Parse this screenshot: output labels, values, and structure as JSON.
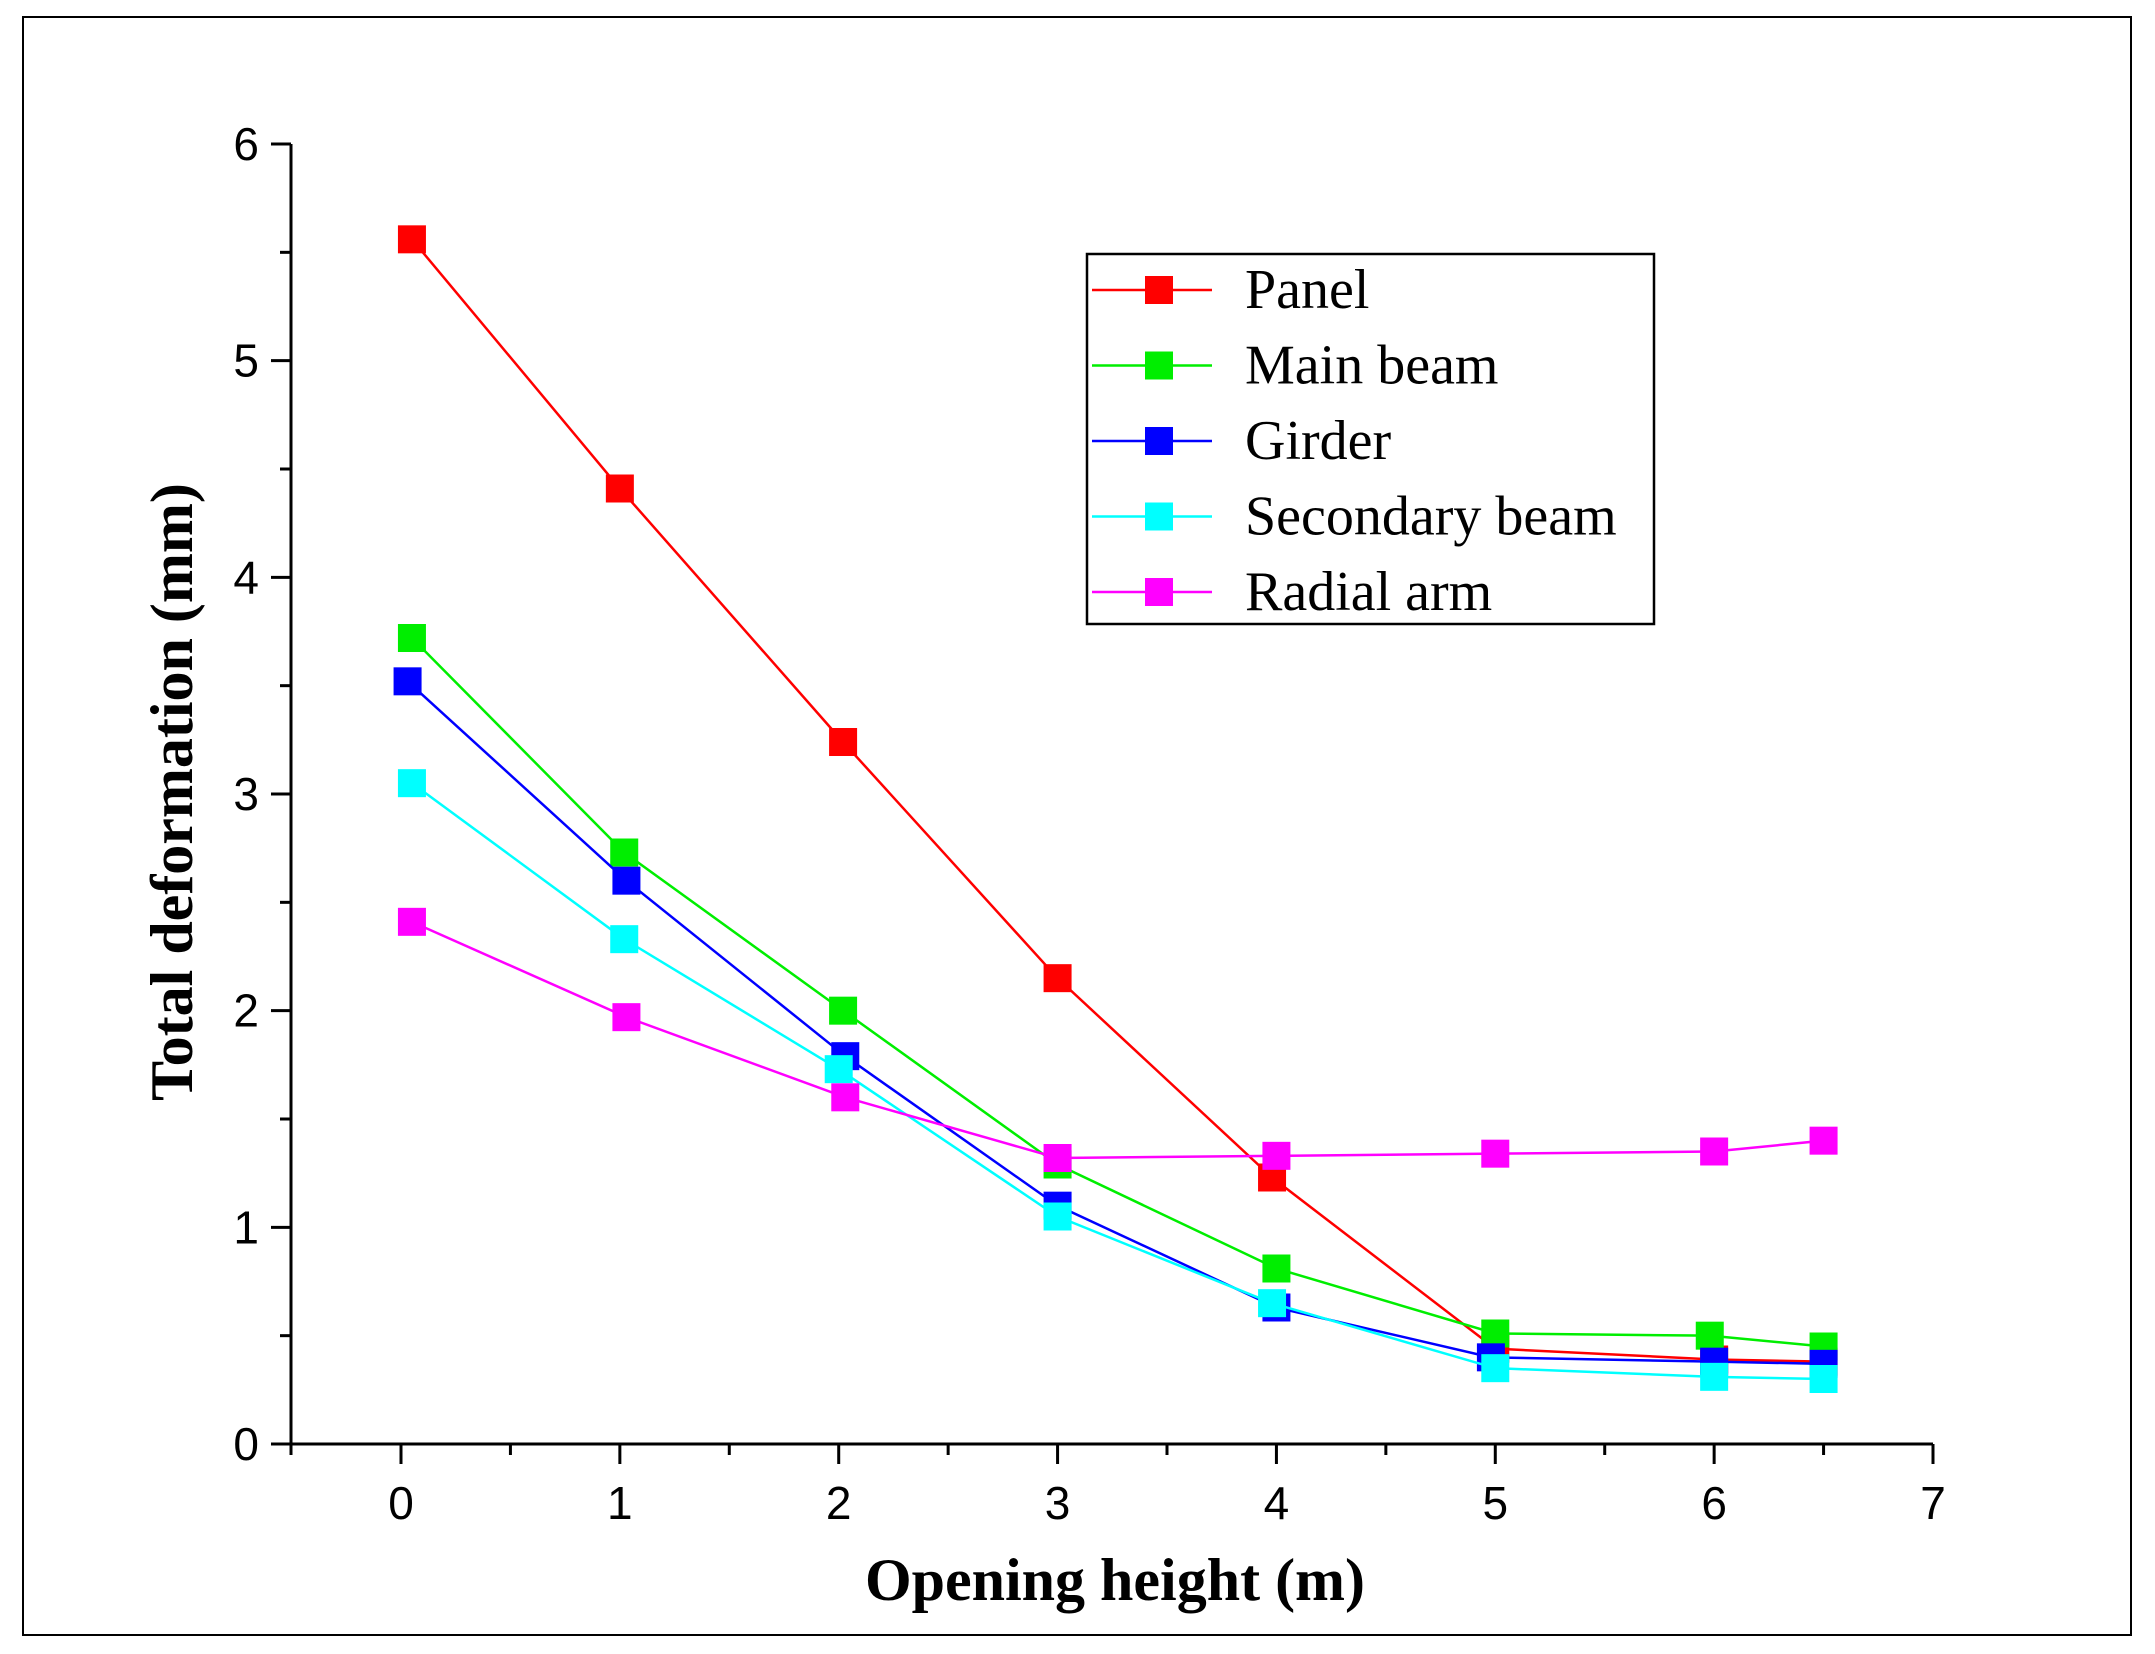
{
  "chart_data": {
    "type": "line",
    "title": "",
    "xlabel": "Opening height (m)",
    "ylabel": "Total deformation (mm)",
    "xlim": [
      -0.5,
      7
    ],
    "ylim": [
      0,
      6
    ],
    "xticks": [
      0,
      1,
      2,
      3,
      4,
      5,
      6,
      7
    ],
    "yticks": [
      0,
      1,
      2,
      3,
      4,
      5,
      6
    ],
    "grid": false,
    "legend_position": "top-right",
    "series": [
      {
        "name": "Panel",
        "color": "#ff0000",
        "marker": "square",
        "x": [
          0.05,
          1.0,
          2.02,
          3.0,
          3.98,
          5.0,
          6.0,
          6.5
        ],
        "y": [
          5.56,
          4.41,
          3.24,
          2.15,
          1.23,
          0.44,
          0.39,
          0.38
        ]
      },
      {
        "name": "Main beam",
        "color": "#00ee00",
        "marker": "square",
        "x": [
          0.05,
          1.02,
          2.02,
          3.0,
          4.0,
          5.0,
          5.98,
          6.5
        ],
        "y": [
          3.72,
          2.73,
          2.0,
          1.29,
          0.81,
          0.51,
          0.5,
          0.45
        ]
      },
      {
        "name": "Girder",
        "color": "#0000ff",
        "marker": "square",
        "x": [
          0.03,
          1.03,
          2.03,
          3.0,
          4.0,
          4.98,
          6.0,
          6.5
        ],
        "y": [
          3.52,
          2.6,
          1.79,
          1.1,
          0.63,
          0.4,
          0.38,
          0.37
        ]
      },
      {
        "name": "Secondary beam",
        "color": "#00ffff",
        "marker": "square",
        "x": [
          0.05,
          1.02,
          2.0,
          3.0,
          3.98,
          5.0,
          6.0,
          6.5
        ],
        "y": [
          3.05,
          2.33,
          1.73,
          1.05,
          0.65,
          0.35,
          0.31,
          0.3
        ]
      },
      {
        "name": "Radial arm",
        "color": "#ff00ff",
        "marker": "square",
        "x": [
          0.05,
          1.03,
          2.03,
          3.0,
          4.0,
          5.0,
          6.0,
          6.5
        ],
        "y": [
          2.41,
          1.97,
          1.6,
          1.32,
          1.33,
          1.34,
          1.35,
          1.4
        ]
      }
    ]
  }
}
